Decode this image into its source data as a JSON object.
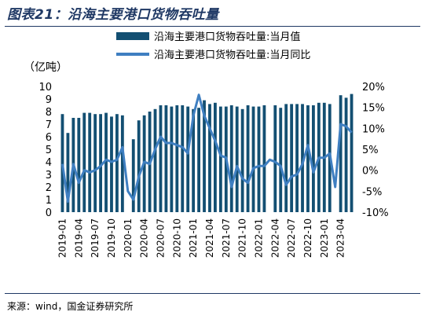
{
  "figure_title": "图表21：沿海主要港口货物吞吐量",
  "source": "来源：wind，国金证券研究所",
  "unit_label": "（亿吨）",
  "colors": {
    "bar": "#134f72",
    "line": "#3f7fc1",
    "title": "#1f3864"
  },
  "chart_data": {
    "type": "bar",
    "title": "",
    "legend_position": "top-right",
    "grid": false,
    "y_left_ticks": [
      "0",
      "1",
      "2",
      "3",
      "4",
      "5",
      "6",
      "7",
      "8",
      "9",
      "10"
    ],
    "y_left_lim": [
      0,
      10
    ],
    "y_right_ticks": [
      "20%",
      "15%",
      "10%",
      "5%",
      "0%",
      "-5%",
      "-10%"
    ],
    "y_right_lim": [
      -10,
      20
    ],
    "x_tick_labels": [
      "2019-01",
      "2019-04",
      "2019-07",
      "2019-10",
      "2020-01",
      "2020-04",
      "2020-07",
      "2020-10",
      "2021-01",
      "2021-04",
      "2021-07",
      "2021-10",
      "2022-01",
      "2022-04",
      "2022-07",
      "2022-10",
      "2023-01",
      "2023-04"
    ],
    "categories": [
      "2019-01",
      "2019-02",
      "2019-03",
      "2019-04",
      "2019-05",
      "2019-06",
      "2019-07",
      "2019-08",
      "2019-09",
      "2019-10",
      "2019-11",
      "2019-12",
      "2020-01",
      "2020-02",
      "2020-03",
      "2020-04",
      "2020-05",
      "2020-06",
      "2020-07",
      "2020-08",
      "2020-09",
      "2020-10",
      "2020-11",
      "2020-12",
      "2021-01",
      "2021-02",
      "2021-03",
      "2021-04",
      "2021-05",
      "2021-06",
      "2021-07",
      "2021-08",
      "2021-09",
      "2021-10",
      "2021-11",
      "2021-12",
      "2022-01",
      "2022-02",
      "2022-03",
      "2022-04",
      "2022-05",
      "2022-06",
      "2022-07",
      "2022-08",
      "2022-09",
      "2022-10",
      "2022-11",
      "2022-12",
      "2023-01",
      "2023-02",
      "2023-03",
      "2023-04",
      "2023-05",
      "2023-06"
    ],
    "series": [
      {
        "name": "沿海主要港口货物吞吐量:当月值",
        "kind": "bar",
        "axis": "left",
        "values": [
          7.8,
          6.3,
          7.5,
          7.5,
          7.9,
          7.9,
          7.8,
          7.8,
          7.9,
          7.6,
          7.8,
          7.7,
          null,
          5.8,
          7.3,
          7.7,
          8.0,
          8.2,
          8.5,
          8.5,
          8.4,
          8.5,
          8.5,
          8.4,
          8.2,
          8.3,
          8.9,
          8.6,
          8.7,
          8.4,
          8.4,
          8.5,
          8.4,
          8.2,
          8.5,
          8.4,
          8.4,
          8.5,
          null,
          8.5,
          8.3,
          8.6,
          8.6,
          8.6,
          8.6,
          8.5,
          8.5,
          8.7,
          8.7,
          8.6,
          null,
          9.3,
          9.1,
          9.4
        ]
      },
      {
        "name": "沿海主要港口货物吞吐量:当月同比",
        "kind": "line",
        "axis": "right",
        "values": [
          1.5,
          -7.5,
          1.5,
          -3.0,
          0.0,
          -0.5,
          0.0,
          1.0,
          2.5,
          2.0,
          2.5,
          5.5,
          -5.0,
          -7.0,
          -1.5,
          2.0,
          1.5,
          5.0,
          8.0,
          6.5,
          6.5,
          6.0,
          5.5,
          4.0,
          13.0,
          18.0,
          13.0,
          10.0,
          7.0,
          3.5,
          3.0,
          -4.0,
          1.0,
          -2.0,
          -3.0,
          0.5,
          1.0,
          1.0,
          2.5,
          2.0,
          1.0,
          -3.5,
          -1.5,
          -1.0,
          1.5,
          6.0,
          -0.5,
          3.0,
          3.0,
          4.0,
          -4.0,
          11.0,
          10.5,
          9.0
        ]
      }
    ]
  }
}
